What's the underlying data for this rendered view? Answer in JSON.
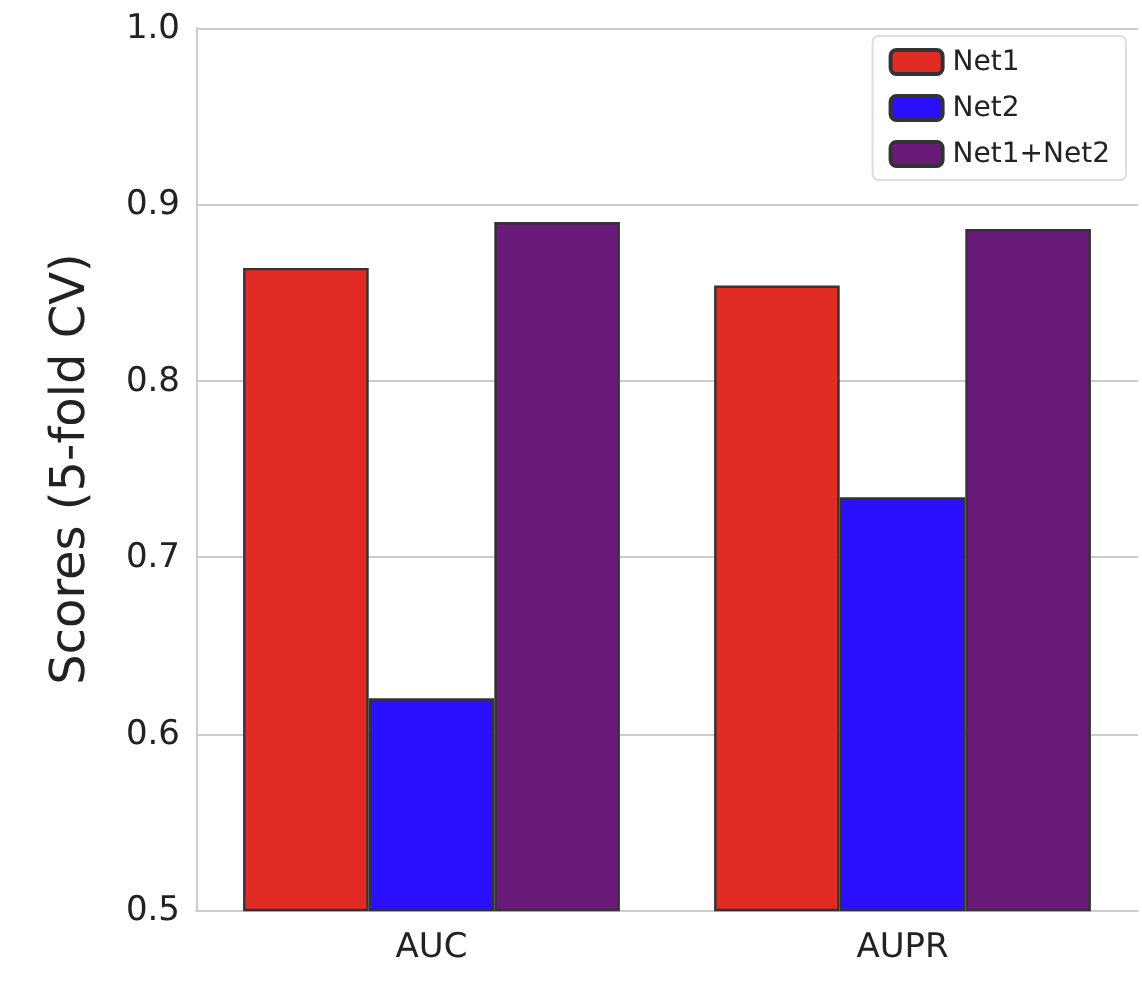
{
  "chart_data": {
    "type": "bar",
    "ylabel": "Scores (5-fold CV)",
    "categories": [
      "AUC",
      "AUPR"
    ],
    "series": [
      {
        "name": "Net1",
        "color": "#e32b26",
        "values": [
          0.864,
          0.854
        ]
      },
      {
        "name": "Net2",
        "color": "#2b0fff",
        "values": [
          0.62,
          0.734
        ]
      },
      {
        "name": "Net1+Net2",
        "color": "#6a1b7a",
        "values": [
          0.89,
          0.886
        ]
      }
    ],
    "ylim": [
      0.5,
      1.0
    ],
    "yticks": [
      0.5,
      0.6,
      0.7,
      0.8,
      0.9,
      {
        "value": 1,
        "label": "1.0"
      }
    ],
    "grid": "y",
    "legend": "top right"
  }
}
